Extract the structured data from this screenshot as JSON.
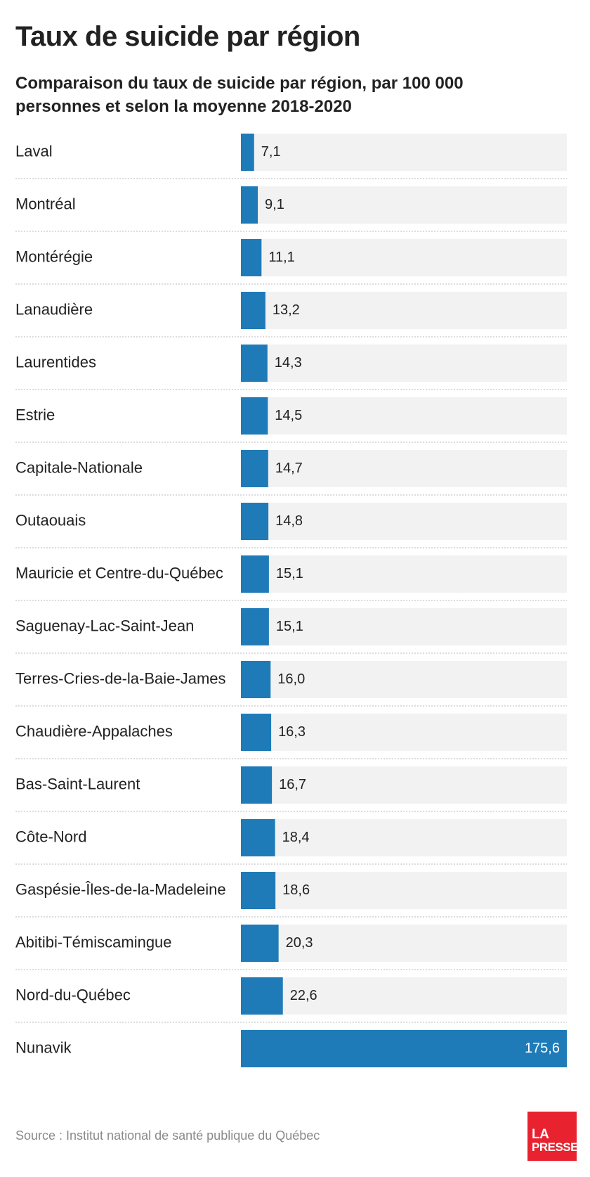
{
  "title": "Taux de suicide par région",
  "subtitle": "Comparaison du taux de suicide par région, par 100 000 personnes et selon la moyenne 2018-2020",
  "source": "Source : Institut national de santé publique du Québec",
  "logo": {
    "line1": "LA",
    "line2": "PRESSE"
  },
  "colors": {
    "bar": "#1f7bb8",
    "track": "#f2f2f2",
    "separator": "#c8c8c8",
    "logo": "#e8232f"
  },
  "chart_data": {
    "type": "bar",
    "orientation": "horizontal",
    "categories": [
      "Laval",
      "Montréal",
      "Montérégie",
      "Lanaudière",
      "Laurentides",
      "Estrie",
      "Capitale-Nationale",
      "Outaouais",
      "Mauricie et Centre-du-Québec",
      "Saguenay-Lac-Saint-Jean",
      "Terres-Cries-de-la-Baie-James",
      "Chaudière-Appalaches",
      "Bas-Saint-Laurent",
      "Côte-Nord",
      "Gaspésie-Îles-de-la-Madeleine",
      "Abitibi-Témiscamingue",
      "Nord-du-Québec",
      "Nunavik"
    ],
    "values": [
      7.1,
      9.1,
      11.1,
      13.2,
      14.3,
      14.5,
      14.7,
      14.8,
      15.1,
      15.1,
      16.0,
      16.3,
      16.7,
      18.4,
      18.6,
      20.3,
      22.6,
      175.6
    ],
    "value_labels": [
      "7,1",
      "9,1",
      "11,1",
      "13,2",
      "14,3",
      "14,5",
      "14,7",
      "14,8",
      "15,1",
      "15,1",
      "16,0",
      "16,3",
      "16,7",
      "18,4",
      "18,6",
      "20,3",
      "22,6",
      "175,6"
    ],
    "xlim": [
      0,
      175.6
    ],
    "grid": false,
    "legend": "none"
  }
}
